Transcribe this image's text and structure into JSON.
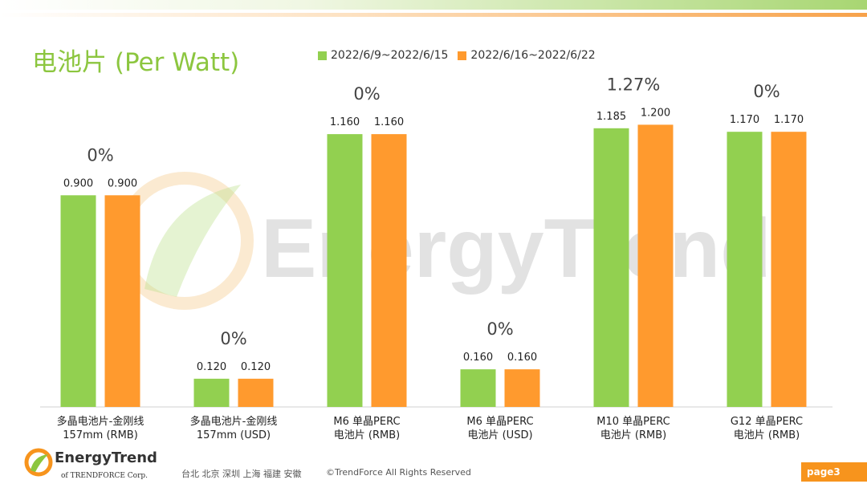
{
  "header": {
    "title": "电池片 (Per Watt)"
  },
  "colors": {
    "series1": "#92d050",
    "series2": "#ff9a2e",
    "title": "#8cc63f",
    "watermark_gray": "#d9d9d9",
    "accent": "#f7941d"
  },
  "chart_data": {
    "type": "bar",
    "title": "电池片 (Per Watt)",
    "categories": [
      [
        "多晶电池片-金刚线",
        "157mm (RMB)"
      ],
      [
        "多晶电池片-金刚线",
        "157mm (USD)"
      ],
      [
        "M6 单晶PERC",
        "电池片 (RMB)"
      ],
      [
        "M6 单晶PERC",
        "电池片 (USD)"
      ],
      [
        "M10 单晶PERC",
        "电池片 (RMB)"
      ],
      [
        "G12 单晶PERC",
        "电池片 (RMB)"
      ]
    ],
    "series": [
      {
        "name": "2022/6/9~2022/6/15",
        "values": [
          0.9,
          0.12,
          1.16,
          0.16,
          1.185,
          1.17
        ],
        "labels": [
          "0.900",
          "0.120",
          "1.160",
          "0.160",
          "1.185",
          "1.170"
        ]
      },
      {
        "name": "2022/6/16~2022/6/22",
        "values": [
          0.9,
          0.12,
          1.16,
          0.16,
          1.2,
          1.17
        ],
        "labels": [
          "0.900",
          "0.120",
          "1.160",
          "0.160",
          "1.200",
          "1.170"
        ]
      }
    ],
    "changes": [
      "0%",
      "0%",
      "0%",
      "0%",
      "1.27%",
      "0%"
    ],
    "ylim": [
      0,
      1.3
    ],
    "legend": "top",
    "grid": false
  },
  "watermark": {
    "text": "EnergyTrend"
  },
  "footer": {
    "logo_text": "EnergyTrend",
    "logo_sub": "of TRENDFORCE Corp.",
    "cities": "台北  北京  深圳  上海  福建  安徽",
    "copyright": "©TrendForce All Rights Reserved",
    "page": "page3"
  }
}
